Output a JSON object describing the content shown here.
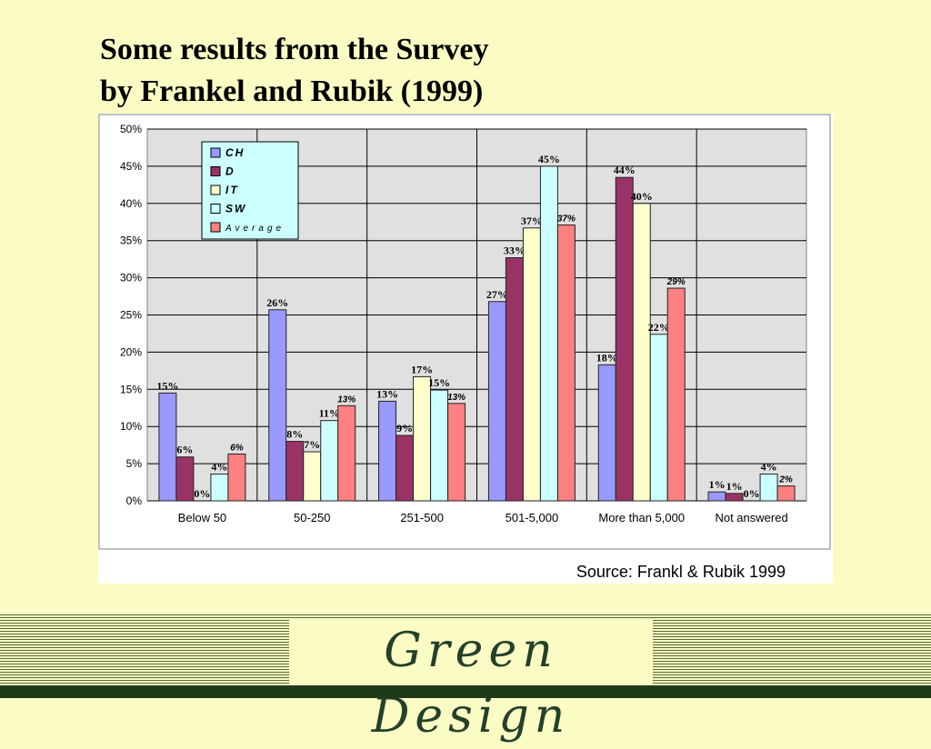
{
  "slide": {
    "title_line1": "Some results from the Survey",
    "title_line2": "by Frankel and Rubik (1999)",
    "footer_logo": "Green Design"
  },
  "colors": {
    "background": "#fbfcc4",
    "plot_area": "#e0e0e0",
    "legend_bg": "#ccffff",
    "footer_dark": "#1f3a1a"
  },
  "chart_data": {
    "type": "bar",
    "title": "",
    "xlabel": "",
    "ylabel": "",
    "source": "Source: Frankl & Rubik 1999",
    "categories": [
      "Below 50",
      "50-250",
      "251-500",
      "501-5,000",
      "More than 5,000",
      "Not answered"
    ],
    "ylim": [
      0,
      50
    ],
    "yticks": [
      "0%",
      "5%",
      "10%",
      "15%",
      "20%",
      "25%",
      "30%",
      "35%",
      "40%",
      "45%",
      "50%"
    ],
    "grid": true,
    "legend_position": "top-left",
    "series": [
      {
        "name": "CH",
        "color": "#9999ff",
        "values": [
          14.5,
          25.7,
          13.4,
          26.8,
          18.3,
          1.2
        ],
        "labels": [
          "15%",
          "26%",
          "13%",
          "27%",
          "18%",
          "1%"
        ]
      },
      {
        "name": "D",
        "color": "#993366",
        "values": [
          5.9,
          8.0,
          8.8,
          32.7,
          43.5,
          1.0
        ],
        "labels": [
          "6%",
          "8%",
          "9%",
          "33%",
          "44%",
          "1%"
        ]
      },
      {
        "name": "IT",
        "color": "#ffffcc",
        "values": [
          0,
          6.6,
          16.7,
          36.7,
          40.0,
          0
        ],
        "labels": [
          "0%",
          "7%",
          "17%",
          "37%",
          "40%",
          "0%"
        ]
      },
      {
        "name": "SW",
        "color": "#ccffff",
        "values": [
          3.6,
          10.8,
          14.9,
          45.0,
          22.4,
          3.6
        ],
        "labels": [
          "4%",
          "11%",
          "15%",
          "45%",
          "22%",
          "4%"
        ]
      },
      {
        "name": "Average",
        "color": "#ff8080",
        "values": [
          6.3,
          12.8,
          13.1,
          37.1,
          28.6,
          2.0
        ],
        "labels": [
          "6%",
          "13%",
          "13%",
          "37%",
          "29%",
          "2%"
        ]
      }
    ]
  }
}
